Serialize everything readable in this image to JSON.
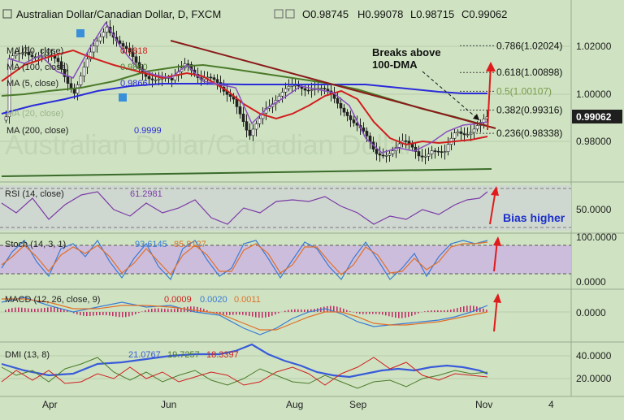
{
  "header": {
    "symbol": "Australian Dollar/Canadian Dollar, D, FXCM",
    "open": "O0.98745",
    "high": "H0.99078",
    "low": "L0.98715",
    "close": "C0.99062"
  },
  "price_panel": {
    "indicators": [
      {
        "label": "MA (50, close)",
        "value": "0.9818",
        "color": "#d11f1f"
      },
      {
        "label": "MA (100, close)",
        "value": "0.9860",
        "color": "#2b2bd9"
      },
      {
        "label": "MA (5, close)",
        "value": "0.9866",
        "color": "#2b2bd9"
      },
      {
        "label": "MA (20, close)",
        "value": "",
        "color": "#2b2bd9"
      },
      {
        "label": "MA (200, close)",
        "value": "0.9999",
        "color": "#2b2bd9"
      }
    ],
    "y_ticks": [
      "1.02000",
      "1.00000",
      "0.98000"
    ],
    "current_price": "0.99062",
    "annotation": "Breaks above\n100-DMA",
    "watermark": "Australian Dollar/Canadian Dollar",
    "fib_levels": [
      {
        "label": "0.786(1.02024)",
        "value": 1.02024,
        "color": "#111111"
      },
      {
        "label": "0.618(1.00898)",
        "value": 1.00898,
        "color": "#111111"
      },
      {
        "label": "0.5(1.00107)",
        "value": 1.00107,
        "color": "#7a9a4a"
      },
      {
        "label": "0.382(0.99316)",
        "value": 0.99316,
        "color": "#111111"
      },
      {
        "label": "0.236(0.98338)",
        "value": 0.98338,
        "color": "#111111"
      }
    ]
  },
  "rsi_panel": {
    "label": "RSI (14, close)",
    "value": "61.2981",
    "y_tick": "50.0000",
    "annotation": "Bias higher"
  },
  "stoch_panel": {
    "label": "Stoch (14, 3, 1)",
    "value_k": "93.6145",
    "value_d": "85.8127",
    "y_ticks": [
      "100.0000",
      "0.0000"
    ]
  },
  "macd_panel": {
    "label": "MACD (12, 26, close, 9)",
    "hist": "0.0009",
    "macd": "0.0020",
    "signal": "0.0011",
    "y_tick": "0.0000"
  },
  "dmi_panel": {
    "label": "DMI (13, 8)",
    "adx": "21.0767",
    "plus_di": "19.7257",
    "minus_di": "18.3397",
    "y_ticks": [
      "40.0000",
      "20.0000"
    ]
  },
  "x_axis": {
    "labels": [
      "Apr",
      "Jun",
      "Aug",
      "Sep",
      "Nov",
      "4"
    ]
  },
  "colors": {
    "background": "#cfe3c2",
    "up_candle": "#ffffff",
    "down_candle": "#222222",
    "ma200": "#2b2bd9",
    "ma100": "#4b7a2a",
    "ma50": "#d11f1f",
    "trendline": "#8b1a1a",
    "rsi": "#7b3aa8",
    "stoch_k": "#3a7bd5",
    "stoch_d": "#e0702a",
    "dmi_adx": "#3a5bd9",
    "dmi_plus": "#4b7a2a",
    "dmi_minus": "#d11f1f"
  },
  "chart_data": {
    "type": "candlestick",
    "x_range": [
      "Mar",
      "Nov"
    ],
    "ylim": [
      0.963,
      1.034
    ],
    "ma_values": {
      "ma50": 0.9818,
      "ma100": 0.986,
      "ma5": 0.9866,
      "ma200": 0.9999
    },
    "last_close": 0.99062,
    "fib_levels": [
      1.02024,
      1.00898,
      1.00107,
      0.99316,
      0.98338
    ],
    "rsi_last": 61.2981,
    "stoch_last": [
      93.6145,
      85.8127
    ],
    "macd_last": [
      0.0009,
      0.002,
      0.0011
    ],
    "dmi_last": [
      21.0767,
      19.7257,
      18.3397
    ]
  }
}
